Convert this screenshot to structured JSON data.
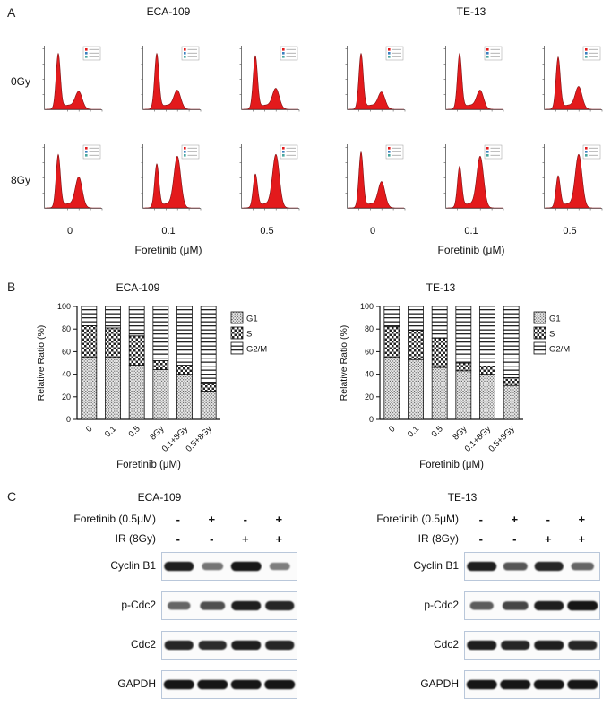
{
  "figure": {
    "panelA": {
      "label": "A",
      "groups": [
        {
          "title": "ECA-109"
        },
        {
          "title": "TE-13"
        }
      ],
      "row_labels": [
        "0Gy",
        "8Gy"
      ],
      "doses": [
        "0",
        "0.1",
        "0.5"
      ],
      "xlabel": "Foretinib (μM)",
      "legend_colors": [
        "#e31a1c",
        "#3b7fbf",
        "#4aa79f"
      ],
      "histograms": [
        [
          {
            "g1": 0.92,
            "g2": 0.28
          },
          {
            "g1": 0.92,
            "g2": 0.3
          },
          {
            "g1": 0.88,
            "g2": 0.33
          },
          {
            "g1": 0.92,
            "g2": 0.27
          },
          {
            "g1": 0.92,
            "g2": 0.3
          },
          {
            "g1": 0.86,
            "g2": 0.36
          }
        ],
        [
          {
            "g1": 0.88,
            "g2": 0.5
          },
          {
            "g1": 0.72,
            "g2": 0.85
          },
          {
            "g1": 0.55,
            "g2": 0.88
          },
          {
            "g1": 0.92,
            "g2": 0.42
          },
          {
            "g1": 0.68,
            "g2": 0.85
          },
          {
            "g1": 0.52,
            "g2": 0.88
          }
        ]
      ]
    },
    "panelB": {
      "label": "B"
    },
    "panelC": {
      "label": "C",
      "groups": [
        {
          "title": "ECA-109",
          "conditions": [
            {
              "label": "Foretinib (0.5μM)",
              "signs": [
                "-",
                "+",
                "-",
                "+"
              ]
            },
            {
              "label": "IR (8Gy)",
              "signs": [
                "-",
                "-",
                "+",
                "+"
              ]
            }
          ],
          "blots": [
            {
              "label": "Cyclin B1",
              "bands": [
                0.95,
                0.4,
                1.0,
                0.35
              ]
            },
            {
              "label": "p-Cdc2",
              "bands": [
                0.5,
                0.65,
                0.95,
                0.9
              ]
            },
            {
              "label": "Cdc2",
              "bands": [
                0.9,
                0.85,
                0.95,
                0.9
              ]
            },
            {
              "label": "GAPDH",
              "bands": [
                1,
                1,
                1,
                1
              ]
            }
          ]
        },
        {
          "title": "TE-13",
          "conditions": [
            {
              "label": "Foretinib (0.5μM)",
              "signs": [
                "-",
                "+",
                "-",
                "+"
              ]
            },
            {
              "label": "IR (8Gy)",
              "signs": [
                "-",
                "-",
                "+",
                "+"
              ]
            }
          ],
          "blots": [
            {
              "label": "Cyclin B1",
              "bands": [
                0.95,
                0.6,
                0.9,
                0.5
              ]
            },
            {
              "label": "p-Cdc2",
              "bands": [
                0.55,
                0.7,
                0.95,
                1.0
              ]
            },
            {
              "label": "Cdc2",
              "bands": [
                0.95,
                0.9,
                0.95,
                0.9
              ]
            },
            {
              "label": "GAPDH",
              "bands": [
                1,
                1,
                1,
                1
              ]
            }
          ]
        }
      ]
    }
  },
  "chart_data": [
    {
      "type": "bar",
      "stacked": true,
      "title": "ECA-109",
      "categories": [
        "0",
        "0.1",
        "0.5",
        "8Gy",
        "0.1+8Gy",
        "0.5+8Gy"
      ],
      "series": [
        {
          "name": "G1",
          "values": [
            55,
            55,
            48,
            44,
            40,
            25
          ]
        },
        {
          "name": "S",
          "values": [
            28,
            26,
            26,
            8,
            8,
            7
          ]
        },
        {
          "name": "G2/M",
          "values": [
            17,
            19,
            26,
            48,
            52,
            68
          ]
        }
      ],
      "xlabel": "Foretinib (μM)",
      "ylabel": "Relative Ratio (%)",
      "ylim": [
        0,
        100
      ],
      "legend_position": "right"
    },
    {
      "type": "bar",
      "stacked": true,
      "title": "TE-13",
      "categories": [
        "0",
        "0.1",
        "0.5",
        "8Gy",
        "0.1+8Gy",
        "0.5+8Gy"
      ],
      "series": [
        {
          "name": "G1",
          "values": [
            55,
            53,
            46,
            43,
            40,
            30
          ]
        },
        {
          "name": "S",
          "values": [
            27,
            26,
            26,
            7,
            7,
            7
          ]
        },
        {
          "name": "G2/M",
          "values": [
            18,
            21,
            28,
            50,
            53,
            63
          ]
        }
      ],
      "xlabel": "Foretinib (μM)",
      "ylabel": "Relative Ratio (%)",
      "ylim": [
        0,
        100
      ],
      "legend_position": "right"
    }
  ]
}
